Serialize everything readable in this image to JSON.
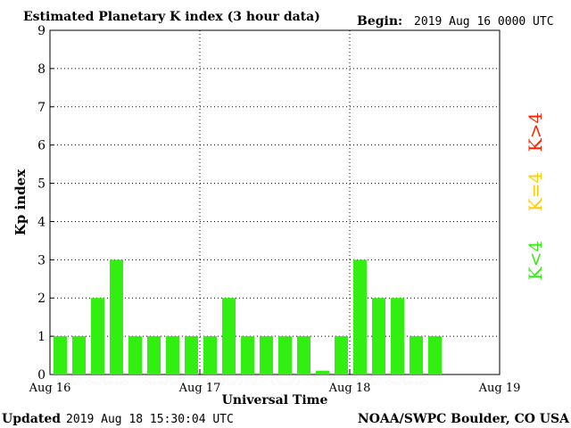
{
  "header": {
    "title": "Estimated Planetary K index (3 hour data)",
    "begin_label": "Begin:",
    "begin_value": "2019 Aug 16 0000 UTC"
  },
  "footer": {
    "updated_label": "Updated",
    "updated_value": "2019 Aug 18 15:30:04 UTC",
    "source": "NOAA/SWPC Boulder, CO USA"
  },
  "legend": [
    {
      "label": "K>4",
      "color": "#ff2200"
    },
    {
      "label": "K=4",
      "color": "#ffcc00"
    },
    {
      "label": "K<4",
      "color": "#33ee11"
    }
  ],
  "chart_data": {
    "type": "bar",
    "title": "Estimated Planetary K index (3 hour data)",
    "xlabel": "Universal Time",
    "ylabel": "Kp index",
    "ylim": [
      0,
      9
    ],
    "yticks": [
      "0",
      "1",
      "2",
      "3",
      "4",
      "5",
      "6",
      "7",
      "8",
      "9"
    ],
    "xlim": [
      "2019-08-16 00:00",
      "2019-08-19 00:00"
    ],
    "xticks": [
      "Aug 16",
      "Aug 17",
      "Aug 18",
      "Aug 19"
    ],
    "interval_hours": 3,
    "grid": true,
    "legend_position": "right",
    "bar_color": "#33ee11",
    "series": [
      {
        "values": [
          1,
          1,
          2,
          3,
          1,
          1,
          1,
          1,
          1,
          2,
          1,
          1,
          1,
          1,
          0.1,
          1,
          3,
          2,
          2,
          1,
          1
        ]
      }
    ]
  }
}
